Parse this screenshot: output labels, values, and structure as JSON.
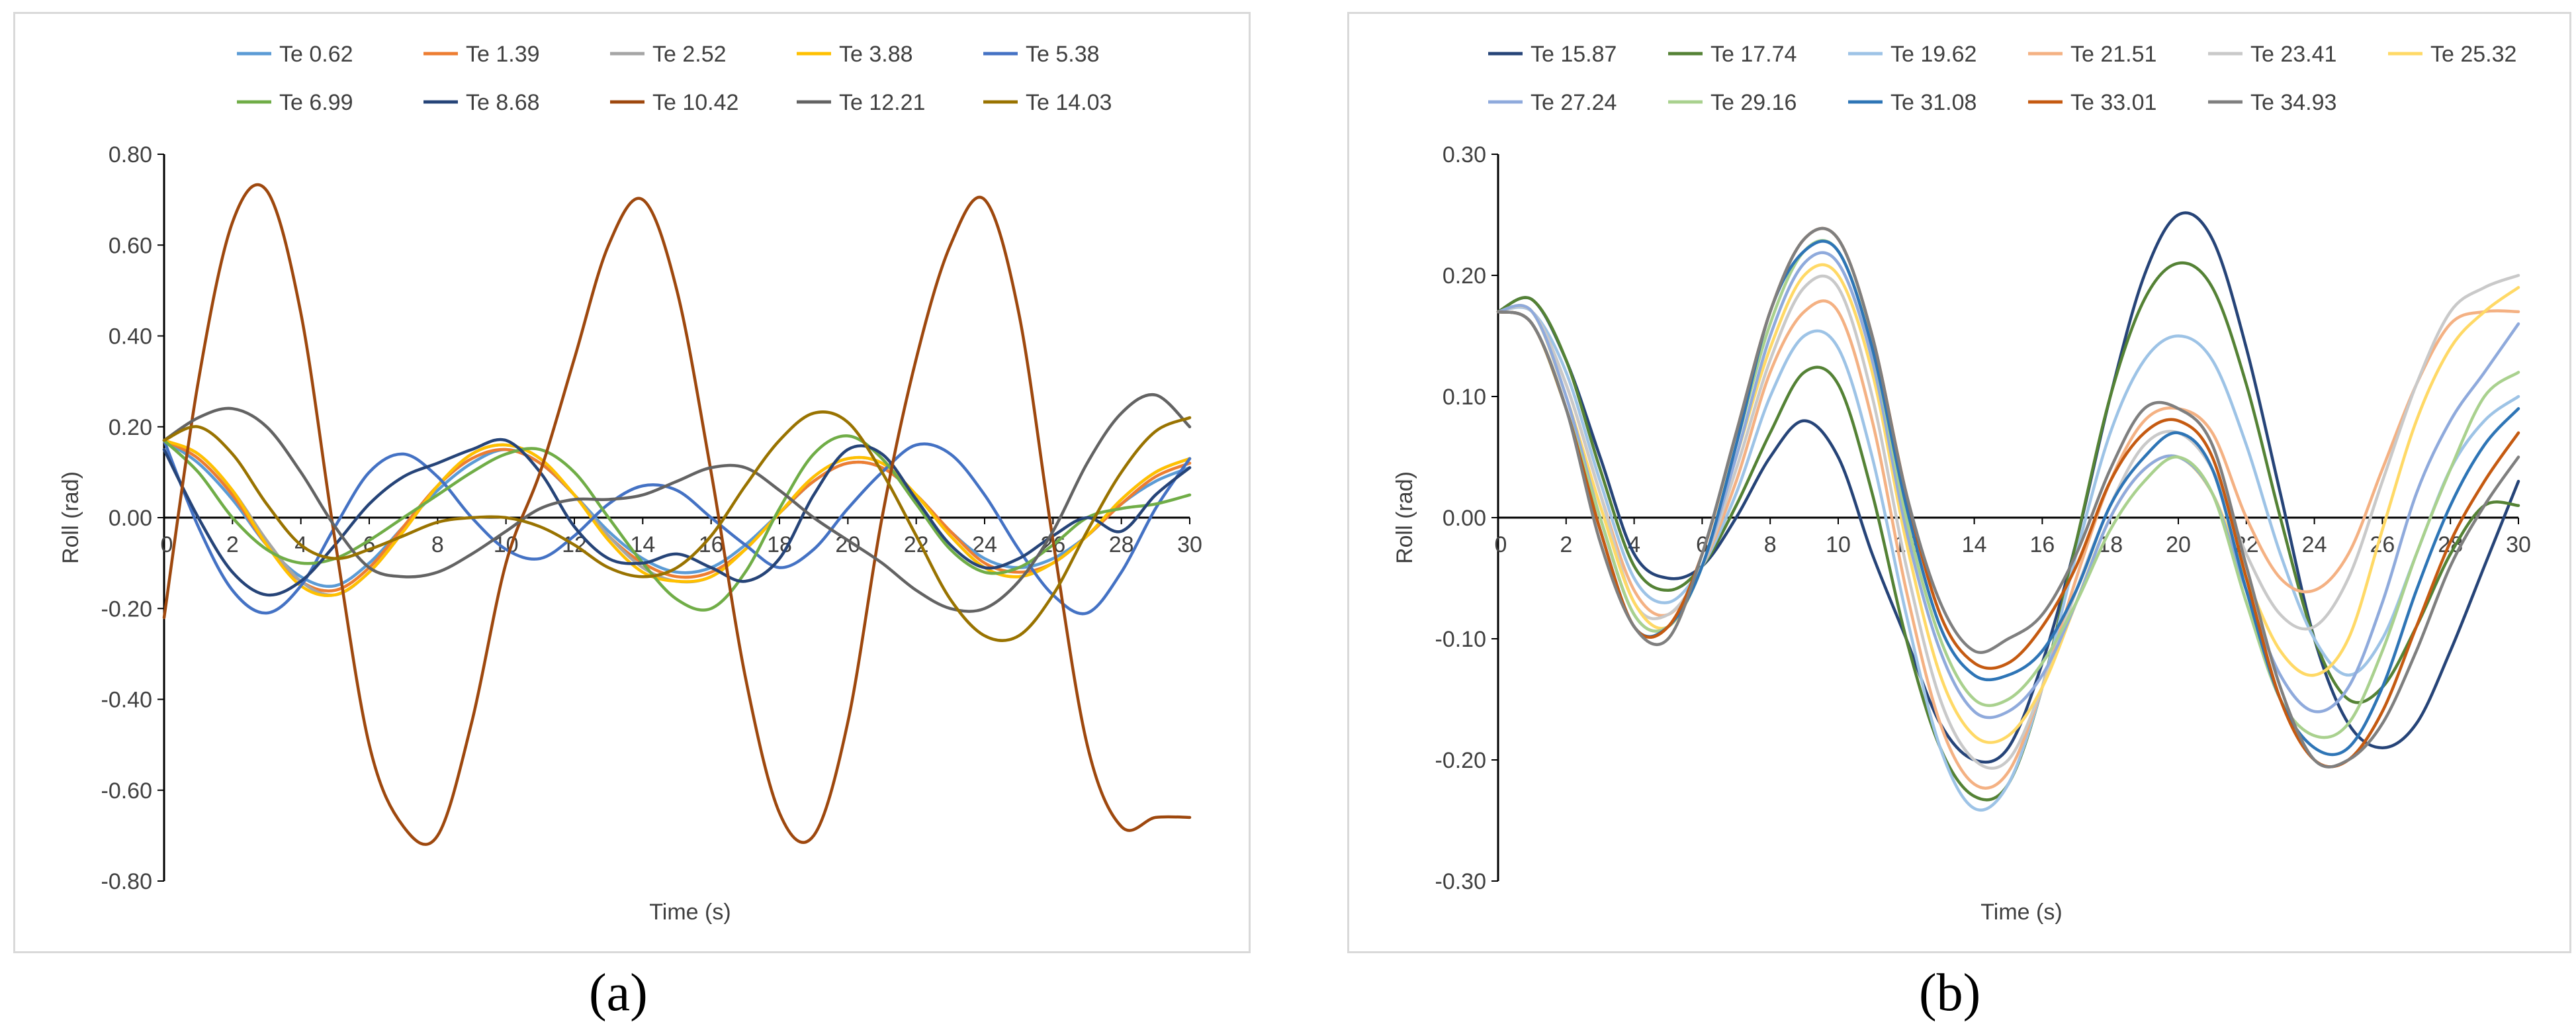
{
  "chart_data": [
    {
      "type": "line",
      "panel": "a",
      "caption": "(a)",
      "xlabel": "Time (s)",
      "ylabel": "Roll (rad)",
      "xlim": [
        0,
        30
      ],
      "ylim": [
        -0.8,
        0.8
      ],
      "xticks": [
        "0",
        "2",
        "4",
        "6",
        "8",
        "10",
        "12",
        "14",
        "16",
        "18",
        "20",
        "22",
        "24",
        "26",
        "28",
        "30"
      ],
      "yticks": [
        "0.80",
        "0.60",
        "0.40",
        "0.20",
        "0.00",
        "-0.20",
        "-0.40",
        "-0.60",
        "-0.80"
      ],
      "grid": false,
      "legend_position": "top",
      "x": [
        0,
        1,
        2,
        3,
        4,
        5,
        6,
        7,
        8,
        9,
        10,
        11,
        12,
        13,
        14,
        15,
        16,
        17,
        18,
        19,
        20,
        21,
        22,
        23,
        24,
        25,
        26,
        27,
        28,
        29,
        30
      ],
      "series": [
        {
          "name": "Te 0.62",
          "color": "#5b9bd5",
          "values": [
            0.17,
            0.12,
            0.04,
            -0.06,
            -0.13,
            -0.15,
            -0.1,
            -0.02,
            0.06,
            0.12,
            0.15,
            0.12,
            0.05,
            -0.03,
            -0.09,
            -0.12,
            -0.11,
            -0.06,
            0.01,
            0.08,
            0.12,
            0.11,
            0.05,
            -0.03,
            -0.09,
            -0.11,
            -0.09,
            -0.04,
            0.03,
            0.08,
            0.11
          ]
        },
        {
          "name": "Te 1.39",
          "color": "#ed7d31",
          "values": [
            0.17,
            0.13,
            0.05,
            -0.06,
            -0.14,
            -0.16,
            -0.11,
            -0.02,
            0.07,
            0.13,
            0.15,
            0.12,
            0.05,
            -0.04,
            -0.1,
            -0.13,
            -0.12,
            -0.07,
            0.01,
            0.08,
            0.12,
            0.11,
            0.05,
            -0.03,
            -0.1,
            -0.12,
            -0.1,
            -0.04,
            0.03,
            0.09,
            0.12
          ]
        },
        {
          "name": "Te 2.52",
          "color": "#a5a5a5",
          "values": [
            0.17,
            0.14,
            0.06,
            -0.05,
            -0.14,
            -0.17,
            -0.12,
            -0.03,
            0.07,
            0.14,
            0.16,
            0.13,
            0.05,
            -0.04,
            -0.11,
            -0.14,
            -0.13,
            -0.07,
            0.01,
            0.09,
            0.13,
            0.12,
            0.05,
            -0.04,
            -0.11,
            -0.13,
            -0.1,
            -0.04,
            0.04,
            0.1,
            0.13
          ]
        },
        {
          "name": "Te 3.88",
          "color": "#ffc000",
          "values": [
            0.17,
            0.14,
            0.06,
            -0.06,
            -0.15,
            -0.17,
            -0.12,
            -0.03,
            0.07,
            0.14,
            0.16,
            0.13,
            0.05,
            -0.05,
            -0.12,
            -0.14,
            -0.13,
            -0.07,
            0.01,
            0.09,
            0.13,
            0.12,
            0.05,
            -0.04,
            -0.11,
            -0.13,
            -0.1,
            -0.04,
            0.04,
            0.1,
            0.13
          ]
        },
        {
          "name": "Te 5.38",
          "color": "#4472c4",
          "values": [
            0.17,
            -0.02,
            -0.16,
            -0.21,
            -0.15,
            -0.02,
            0.1,
            0.14,
            0.09,
            0.0,
            -0.07,
            -0.09,
            -0.04,
            0.03,
            0.07,
            0.06,
            0.0,
            -0.06,
            -0.11,
            -0.07,
            0.02,
            0.1,
            0.16,
            0.14,
            0.05,
            -0.07,
            -0.17,
            -0.21,
            -0.12,
            0.02,
            0.13
          ]
        },
        {
          "name": "Te 6.99",
          "color": "#70ad47",
          "values": [
            0.17,
            0.1,
            0.0,
            -0.07,
            -0.1,
            -0.09,
            -0.05,
            0.0,
            0.05,
            0.1,
            0.14,
            0.15,
            0.1,
            0.0,
            -0.1,
            -0.18,
            -0.2,
            -0.12,
            0.02,
            0.14,
            0.18,
            0.13,
            0.03,
            -0.07,
            -0.12,
            -0.11,
            -0.06,
            0.0,
            0.02,
            0.03,
            0.05
          ]
        },
        {
          "name": "Te 8.68",
          "color": "#264478",
          "values": [
            0.15,
            0.0,
            -0.12,
            -0.17,
            -0.14,
            -0.06,
            0.03,
            0.09,
            0.12,
            0.15,
            0.17,
            0.1,
            -0.02,
            -0.09,
            -0.1,
            -0.08,
            -0.11,
            -0.14,
            -0.09,
            0.05,
            0.15,
            0.14,
            0.04,
            -0.06,
            -0.11,
            -0.09,
            -0.04,
            0.0,
            -0.03,
            0.05,
            0.11
          ]
        },
        {
          "name": "Te 10.42",
          "color": "#9e480e",
          "values": [
            -0.22,
            0.3,
            0.65,
            0.72,
            0.45,
            -0.05,
            -0.5,
            -0.68,
            -0.7,
            -0.45,
            -0.1,
            0.1,
            0.35,
            0.6,
            0.7,
            0.5,
            0.1,
            -0.35,
            -0.65,
            -0.7,
            -0.45,
            0.0,
            0.35,
            0.6,
            0.7,
            0.45,
            -0.05,
            -0.5,
            -0.68,
            -0.66,
            -0.66
          ]
        },
        {
          "name": "Te 12.21",
          "color": "#636363",
          "values": [
            0.17,
            0.22,
            0.24,
            0.2,
            0.1,
            -0.02,
            -0.11,
            -0.13,
            -0.12,
            -0.08,
            -0.03,
            0.02,
            0.04,
            0.04,
            0.05,
            0.08,
            0.11,
            0.11,
            0.06,
            0.0,
            -0.05,
            -0.1,
            -0.16,
            -0.2,
            -0.2,
            -0.14,
            -0.03,
            0.12,
            0.23,
            0.27,
            0.2
          ]
        },
        {
          "name": "Te 14.03",
          "color": "#997300",
          "values": [
            0.17,
            0.2,
            0.14,
            0.03,
            -0.06,
            -0.09,
            -0.07,
            -0.04,
            -0.01,
            0.0,
            0.0,
            -0.02,
            -0.06,
            -0.11,
            -0.13,
            -0.11,
            -0.04,
            0.07,
            0.17,
            0.23,
            0.21,
            0.1,
            -0.04,
            -0.18,
            -0.26,
            -0.26,
            -0.17,
            -0.03,
            0.1,
            0.19,
            0.22
          ]
        }
      ]
    },
    {
      "type": "line",
      "panel": "b",
      "caption": "(b)",
      "xlabel": "Time (s)",
      "ylabel": "Roll (rad)",
      "xlim": [
        0,
        30
      ],
      "ylim": [
        -0.3,
        0.3
      ],
      "xticks": [
        "0",
        "2",
        "4",
        "6",
        "8",
        "10",
        "12",
        "14",
        "16",
        "18",
        "20",
        "22",
        "24",
        "26",
        "28",
        "30"
      ],
      "yticks": [
        "0.30",
        "0.20",
        "0.10",
        "0.00",
        "-0.10",
        "-0.20",
        "-0.30"
      ],
      "grid": false,
      "legend_position": "top",
      "x": [
        0,
        1,
        2,
        3,
        4,
        5,
        6,
        7,
        8,
        9,
        10,
        11,
        12,
        13,
        14,
        15,
        16,
        17,
        18,
        19,
        20,
        21,
        22,
        23,
        24,
        25,
        26,
        27,
        28,
        29,
        30
      ],
      "series": [
        {
          "name": "Te 15.87",
          "color": "#264478",
          "values": [
            0.17,
            0.18,
            0.13,
            0.05,
            -0.03,
            -0.05,
            -0.04,
            0.0,
            0.05,
            0.08,
            0.05,
            -0.03,
            -0.1,
            -0.17,
            -0.2,
            -0.19,
            -0.12,
            -0.02,
            0.1,
            0.2,
            0.25,
            0.23,
            0.14,
            0.02,
            -0.1,
            -0.17,
            -0.19,
            -0.17,
            -0.11,
            -0.04,
            0.03
          ]
        },
        {
          "name": "Te 17.74",
          "color": "#548235",
          "values": [
            0.17,
            0.18,
            0.13,
            0.04,
            -0.04,
            -0.06,
            -0.04,
            0.01,
            0.07,
            0.12,
            0.11,
            0.02,
            -0.1,
            -0.19,
            -0.23,
            -0.22,
            -0.14,
            -0.02,
            0.1,
            0.18,
            0.21,
            0.19,
            0.11,
            0.0,
            -0.1,
            -0.15,
            -0.14,
            -0.09,
            -0.03,
            0.01,
            0.01
          ]
        },
        {
          "name": "Te 19.62",
          "color": "#9dc3e6",
          "values": [
            0.17,
            0.17,
            0.12,
            0.03,
            -0.05,
            -0.07,
            -0.04,
            0.02,
            0.1,
            0.15,
            0.14,
            0.05,
            -0.08,
            -0.19,
            -0.24,
            -0.22,
            -0.14,
            -0.03,
            0.07,
            0.13,
            0.15,
            0.13,
            0.06,
            -0.03,
            -0.1,
            -0.13,
            -0.1,
            -0.03,
            0.04,
            0.08,
            0.1
          ]
        },
        {
          "name": "Te 21.51",
          "color": "#f4b183",
          "values": [
            0.17,
            0.17,
            0.11,
            0.02,
            -0.06,
            -0.08,
            -0.04,
            0.03,
            0.12,
            0.17,
            0.17,
            0.08,
            -0.06,
            -0.17,
            -0.22,
            -0.21,
            -0.14,
            -0.05,
            0.03,
            0.08,
            0.09,
            0.07,
            0.0,
            -0.05,
            -0.06,
            -0.03,
            0.04,
            0.11,
            0.16,
            0.17,
            0.17
          ]
        },
        {
          "name": "Te 23.41",
          "color": "#c9c9c9",
          "values": [
            0.17,
            0.17,
            0.11,
            0.02,
            -0.07,
            -0.08,
            -0.04,
            0.04,
            0.13,
            0.19,
            0.19,
            0.1,
            -0.04,
            -0.15,
            -0.2,
            -0.2,
            -0.14,
            -0.06,
            0.01,
            0.06,
            0.07,
            0.04,
            -0.03,
            -0.08,
            -0.09,
            -0.05,
            0.03,
            0.11,
            0.17,
            0.19,
            0.2
          ]
        },
        {
          "name": "Te 25.32",
          "color": "#ffd966",
          "values": [
            0.17,
            0.17,
            0.1,
            0.01,
            -0.07,
            -0.09,
            -0.04,
            0.05,
            0.14,
            0.2,
            0.2,
            0.12,
            -0.02,
            -0.13,
            -0.18,
            -0.18,
            -0.14,
            -0.07,
            0.0,
            0.04,
            0.05,
            0.02,
            -0.05,
            -0.11,
            -0.13,
            -0.1,
            -0.01,
            0.08,
            0.14,
            0.17,
            0.19
          ]
        },
        {
          "name": "Te 27.24",
          "color": "#8faadc",
          "values": [
            0.17,
            0.17,
            0.1,
            0.0,
            -0.08,
            -0.09,
            -0.04,
            0.05,
            0.15,
            0.21,
            0.21,
            0.13,
            -0.01,
            -0.11,
            -0.16,
            -0.16,
            -0.13,
            -0.07,
            0.0,
            0.04,
            0.05,
            0.02,
            -0.06,
            -0.13,
            -0.16,
            -0.14,
            -0.07,
            0.02,
            0.08,
            0.12,
            0.16
          ]
        },
        {
          "name": "Te 29.16",
          "color": "#a9d18e",
          "values": [
            0.17,
            0.16,
            0.09,
            0.0,
            -0.08,
            -0.09,
            -0.04,
            0.06,
            0.16,
            0.22,
            0.22,
            0.14,
            0.0,
            -0.1,
            -0.15,
            -0.15,
            -0.12,
            -0.07,
            -0.01,
            0.03,
            0.05,
            0.02,
            -0.07,
            -0.15,
            -0.18,
            -0.17,
            -0.11,
            -0.03,
            0.04,
            0.1,
            0.12
          ]
        },
        {
          "name": "Te 31.08",
          "color": "#2e75b6",
          "values": [
            0.17,
            0.16,
            0.09,
            -0.01,
            -0.09,
            -0.09,
            -0.04,
            0.06,
            0.17,
            0.22,
            0.22,
            0.14,
            0.01,
            -0.09,
            -0.13,
            -0.13,
            -0.11,
            -0.06,
            0.01,
            0.05,
            0.07,
            0.04,
            -0.06,
            -0.15,
            -0.19,
            -0.19,
            -0.14,
            -0.06,
            0.01,
            0.06,
            0.09
          ]
        },
        {
          "name": "Te 33.01",
          "color": "#c55a11",
          "values": [
            0.17,
            0.16,
            0.09,
            -0.01,
            -0.09,
            -0.09,
            -0.03,
            0.07,
            0.17,
            0.23,
            0.23,
            0.15,
            0.02,
            -0.08,
            -0.12,
            -0.12,
            -0.09,
            -0.04,
            0.03,
            0.07,
            0.08,
            0.05,
            -0.05,
            -0.15,
            -0.2,
            -0.2,
            -0.16,
            -0.09,
            -0.02,
            0.03,
            0.07
          ]
        },
        {
          "name": "Te 34.93",
          "color": "#7f7f7f",
          "values": [
            0.17,
            0.16,
            0.09,
            -0.02,
            -0.09,
            -0.1,
            -0.03,
            0.07,
            0.17,
            0.23,
            0.23,
            0.15,
            0.02,
            -0.07,
            -0.11,
            -0.1,
            -0.08,
            -0.03,
            0.04,
            0.09,
            0.09,
            0.06,
            -0.04,
            -0.14,
            -0.2,
            -0.2,
            -0.17,
            -0.11,
            -0.04,
            0.01,
            0.05
          ]
        }
      ]
    }
  ]
}
